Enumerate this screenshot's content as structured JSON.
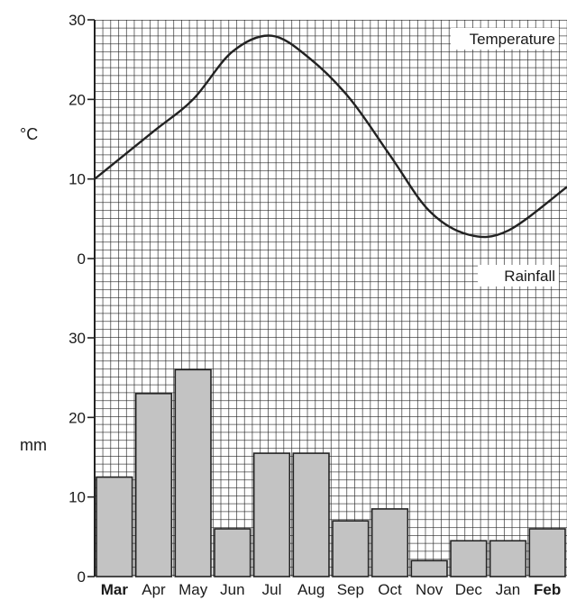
{
  "chart_data": [
    {
      "type": "line",
      "panel_label": "Temperature",
      "ylabel": "°C",
      "ylim": [
        0,
        30
      ],
      "yticks": [
        0,
        10,
        20,
        30
      ],
      "categories": [
        "Mar",
        "Apr",
        "May",
        "Jun",
        "Jul",
        "Aug",
        "Sep",
        "Oct",
        "Nov",
        "Dec",
        "Jan",
        "Feb"
      ],
      "values": [
        10,
        16,
        20,
        26,
        28,
        25,
        20,
        13,
        6,
        3,
        3.5,
        9
      ],
      "grid": true,
      "line_color": "#222222"
    },
    {
      "type": "bar",
      "panel_label": "Rainfall",
      "ylabel": "mm",
      "ylim": [
        0,
        30
      ],
      "yticks": [
        0,
        10,
        20,
        30
      ],
      "categories": [
        "Mar",
        "Apr",
        "May",
        "Jun",
        "Jul",
        "Aug",
        "Sep",
        "Oct",
        "Nov",
        "Dec",
        "Jan",
        "Feb"
      ],
      "bold_categories": [
        "Mar",
        "Feb"
      ],
      "values": [
        12.5,
        23,
        26,
        6,
        15.5,
        15.5,
        7,
        8.5,
        2,
        4.5,
        4.5,
        6
      ],
      "grid": true,
      "bar_color": "#c3c3c3"
    }
  ]
}
